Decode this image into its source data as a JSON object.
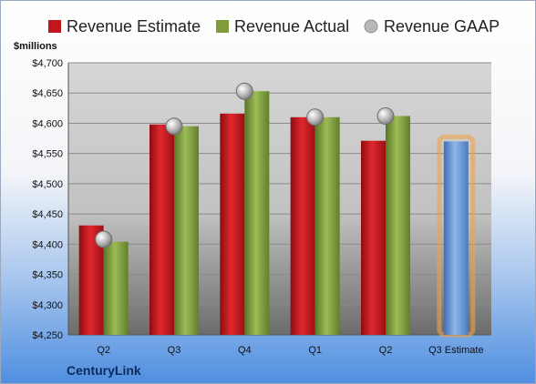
{
  "legend": {
    "estimate": "Revenue Estimate",
    "actual": "Revenue Actual",
    "gaap": "Revenue GAAP"
  },
  "units_label": "$millions",
  "company": "CenturyLink",
  "colors": {
    "estimate": "#c0161c",
    "actual": "#7e9c3a",
    "gaap": "#a8a8a8",
    "forecast": "#6a9bd8",
    "forecast_glow": "#f0a24a"
  },
  "chart_data": {
    "type": "bar",
    "categories": [
      "Q2",
      "Q3",
      "Q4",
      "Q1",
      "Q2",
      "Q3 Estimate"
    ],
    "series": [
      {
        "name": "Revenue Estimate",
        "values": [
          4431,
          4598,
          4616,
          4610,
          4571,
          4570
        ]
      },
      {
        "name": "Revenue Actual",
        "values": [
          4404,
          4595,
          4653,
          4610,
          4612,
          null
        ]
      },
      {
        "name": "Revenue GAAP",
        "values": [
          4408,
          4595,
          4653,
          4610,
          4612,
          null
        ]
      }
    ],
    "ylabel": "$millions",
    "ylim": [
      4250,
      4700
    ],
    "yticks": [
      "$4,250",
      "$4,300",
      "$4,350",
      "$4,400",
      "$4,450",
      "$4,500",
      "$4,550",
      "$4,600",
      "$4,650",
      "$4,700"
    ],
    "grid": true,
    "legend_position": "top"
  }
}
